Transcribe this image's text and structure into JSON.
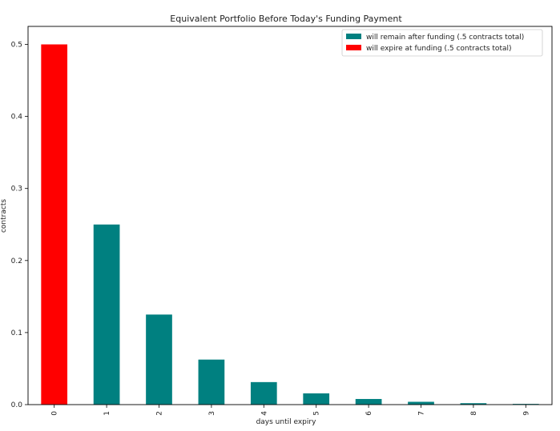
{
  "chart_data": {
    "type": "bar",
    "title": "Equivalent Portfolio Before Today's Funding Payment",
    "xlabel": "days until expiry",
    "ylabel": "contracts",
    "categories": [
      "0",
      "1",
      "2",
      "3",
      "4",
      "5",
      "6",
      "7",
      "8",
      "9"
    ],
    "series": [
      {
        "name": "will remain after funding (.5 contracts total)",
        "color": "#008080",
        "values": [
          0,
          0.25,
          0.125,
          0.0625,
          0.03125,
          0.015625,
          0.0078125,
          0.00390625,
          0.001953125,
          0.0009765625
        ]
      },
      {
        "name": "will expire at funding (.5 contracts total)",
        "color": "#ff0000",
        "values": [
          0.5,
          0,
          0,
          0,
          0,
          0,
          0,
          0,
          0,
          0
        ]
      }
    ],
    "stacked": true,
    "ylim": [
      0,
      0.525
    ],
    "yticks": [
      "0.0",
      "0.1",
      "0.2",
      "0.3",
      "0.4",
      "0.5"
    ],
    "grid": false,
    "legend_position": "top-right"
  }
}
